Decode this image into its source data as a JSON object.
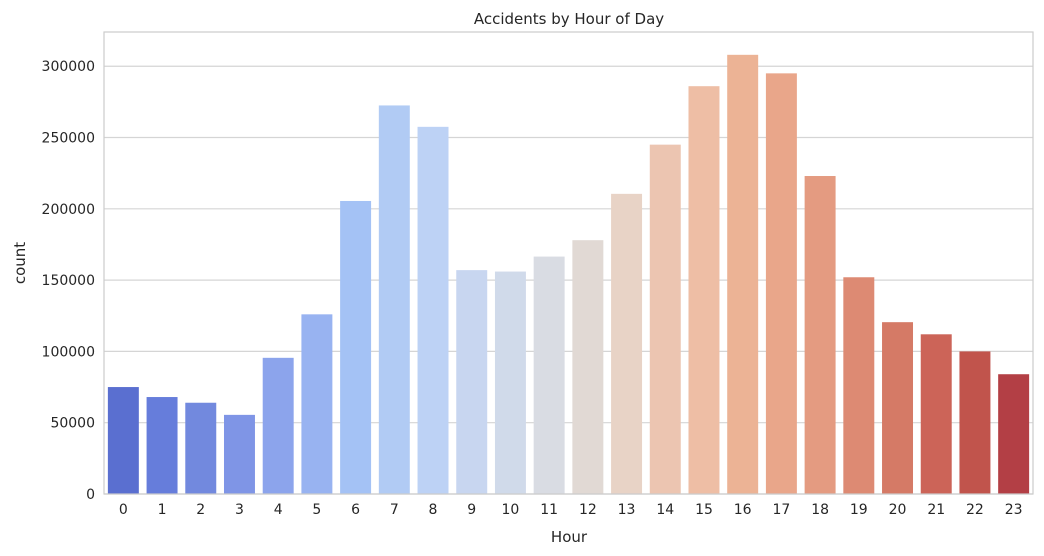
{
  "chart_data": {
    "type": "bar",
    "title": "Accidents by Hour of Day",
    "xlabel": "Hour",
    "ylabel": "count",
    "categories": [
      "0",
      "1",
      "2",
      "3",
      "4",
      "5",
      "6",
      "7",
      "8",
      "9",
      "10",
      "11",
      "12",
      "13",
      "14",
      "15",
      "16",
      "17",
      "18",
      "19",
      "20",
      "21",
      "22",
      "23"
    ],
    "values": [
      75000,
      68000,
      64000,
      55500,
      95500,
      126000,
      205500,
      272500,
      257500,
      157000,
      156000,
      166500,
      178000,
      210500,
      245000,
      286000,
      308000,
      295000,
      223000,
      152000,
      120500,
      112000,
      100000,
      84000
    ],
    "colors": [
      "#5a6fd0",
      "#667ddb",
      "#7289de",
      "#7f95e6",
      "#8ca4ec",
      "#98b3f1",
      "#a4c2f5",
      "#b1cbf4",
      "#bdd2f5",
      "#c8d6f0",
      "#d0daea",
      "#d9dce3",
      "#e1d9d4",
      "#e8d3c6",
      "#ecc5b1",
      "#eebea5",
      "#ecb395",
      "#e9a68a",
      "#e49b81",
      "#dd8a73",
      "#d57a66",
      "#cc6458",
      "#c1544c",
      "#b33f45"
    ],
    "y_ticks": [
      0,
      50000,
      100000,
      150000,
      200000,
      250000,
      300000
    ],
    "ylim": [
      0,
      324000
    ],
    "grid": true
  }
}
